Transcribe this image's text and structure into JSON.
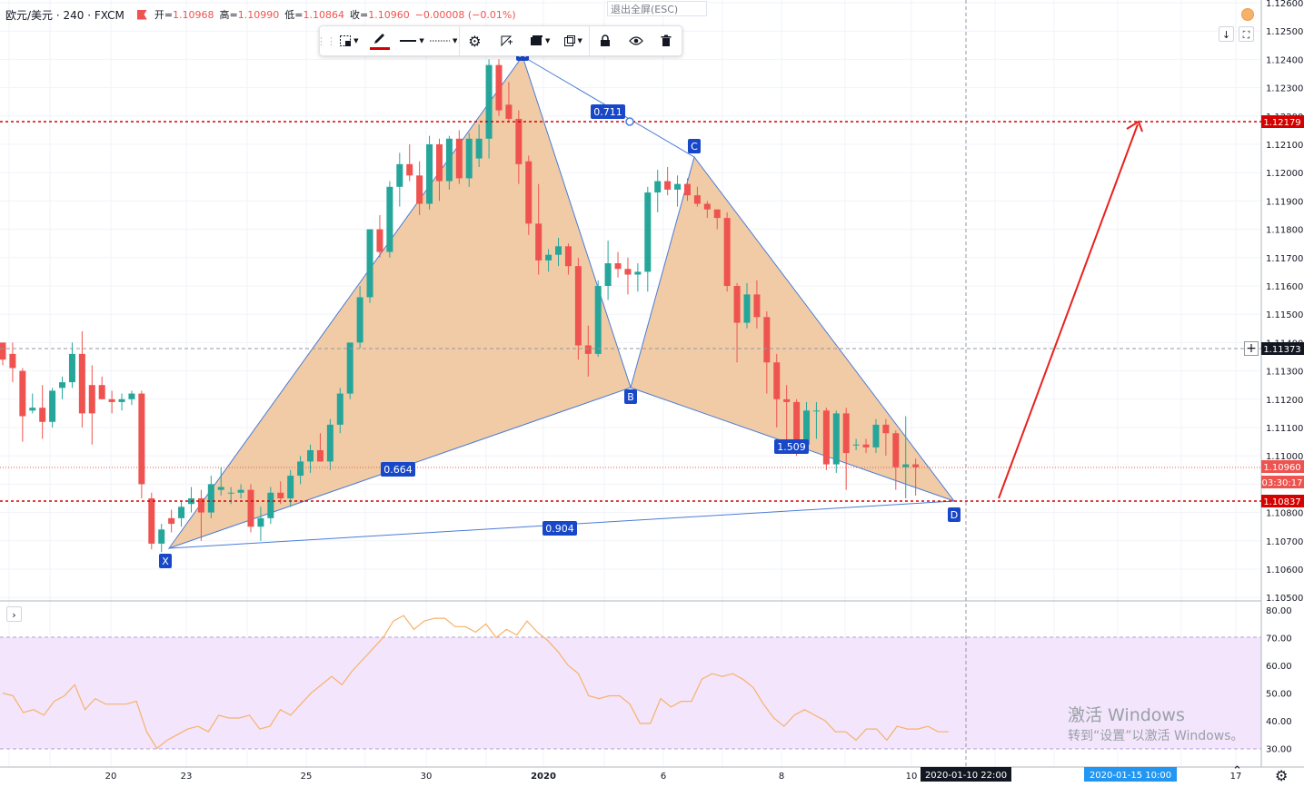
{
  "header": {
    "symbol": "欧元/美元 · 240 · FXCM",
    "open_label": "开=",
    "open": "1.10968",
    "high_label": "高=",
    "high": "1.10990",
    "low_label": "低=",
    "low": "1.10864",
    "close_label": "收=",
    "close": "1.10960",
    "change": "−0.00008 (−0.01%)"
  },
  "exit_fullscreen": "退出全屏(ESC)",
  "toolbar": {
    "items": [
      "select-area-icon",
      "pencil-icon",
      "line-style-icon",
      "line-dash-icon",
      "settings-icon",
      "visual-order-icon",
      "layers-icon",
      "clone-icon",
      "lock-icon",
      "eye-icon",
      "trash-icon"
    ]
  },
  "colors": {
    "up": "#26a69a",
    "down": "#ef5350",
    "pattern_fill": "#f0c8a0",
    "pattern_line": "#4a7cd6",
    "label_bg": "#1848c8",
    "rsi_line": "#f6b26b",
    "rsi_band": "#f3e5fc",
    "level_red": "#d50000",
    "arrow": "#e8211d"
  },
  "price_axis": {
    "ticks": [
      "1.12600",
      "1.12500",
      "1.12400",
      "1.12300",
      "1.12200",
      "1.12100",
      "1.12000",
      "1.11900",
      "1.11800",
      "1.11700",
      "1.11600",
      "1.11500",
      "1.11400",
      "1.11300",
      "1.11200",
      "1.11100",
      "1.11000",
      "1.10900",
      "1.10800",
      "1.10700",
      "1.10600",
      "1.10500"
    ],
    "tag_upper": "1.12179",
    "tag_cross": "1.11373",
    "tag_last": "1.10960",
    "tag_countdown": "03:30:17",
    "tag_lower": "1.10837"
  },
  "rsi_axis": {
    "ticks": [
      "80.00",
      "70.00",
      "60.00",
      "50.00",
      "40.00",
      "30.00"
    ]
  },
  "time_axis": {
    "ticks": [
      "20",
      "23",
      "25",
      "30",
      "2020",
      "6",
      "8",
      "10",
      "17"
    ],
    "cursor_label": "2020-01-10   22:00",
    "end_label": "2020-01-15   10:00"
  },
  "pattern": {
    "points": [
      "X",
      "A",
      "B",
      "C",
      "D"
    ],
    "ratios": [
      "0.664",
      "0.711",
      "1.509",
      "0.904"
    ]
  },
  "watermark": {
    "line1": "激活 Windows",
    "line2": "转到“设置”以激活 Windows。"
  },
  "chart_data": {
    "type": "candlestick",
    "title": "欧元/美元 · 240 · FXCM",
    "ylim": [
      1.105,
      1.126
    ],
    "last_price": 1.1096,
    "horizontal_levels": [
      1.12179,
      1.10837
    ],
    "candles": [
      [
        1.114,
        1.114,
        1.1132,
        1.1134
      ],
      [
        1.1136,
        1.114,
        1.1126,
        1.1131
      ],
      [
        1.113,
        1.1131,
        1.1105,
        1.1114
      ],
      [
        1.1116,
        1.1122,
        1.1115,
        1.1117
      ],
      [
        1.1117,
        1.1125,
        1.1106,
        1.1112
      ],
      [
        1.1112,
        1.1124,
        1.111,
        1.1123
      ],
      [
        1.1124,
        1.1128,
        1.112,
        1.1126
      ],
      [
        1.1126,
        1.114,
        1.1124,
        1.1136
      ],
      [
        1.1136,
        1.1144,
        1.111,
        1.1115
      ],
      [
        1.1125,
        1.1132,
        1.1104,
        1.1115
      ],
      [
        1.1125,
        1.1128,
        1.112,
        1.112
      ],
      [
        1.112,
        1.1123,
        1.1115,
        1.1119
      ],
      [
        1.1119,
        1.1122,
        1.1116,
        1.112
      ],
      [
        1.112,
        1.1123,
        1.1118,
        1.1122
      ],
      [
        1.1122,
        1.1123,
        1.1085,
        1.109
      ],
      [
        1.1085,
        1.1087,
        1.1067,
        1.1069
      ],
      [
        1.1069,
        1.1076,
        1.1066,
        1.1074
      ],
      [
        1.1078,
        1.1081,
        1.1073,
        1.1076
      ],
      [
        1.1078,
        1.1084,
        1.1075,
        1.1082
      ],
      [
        1.1083,
        1.1089,
        1.108,
        1.1085
      ],
      [
        1.1085,
        1.1088,
        1.107,
        1.108
      ],
      [
        1.108,
        1.1093,
        1.1078,
        1.109
      ],
      [
        1.1088,
        1.1096,
        1.1086,
        1.1089
      ],
      [
        1.1087,
        1.1089,
        1.1083,
        1.1087
      ],
      [
        1.1087,
        1.109,
        1.1085,
        1.1088
      ],
      [
        1.1088,
        1.109,
        1.1073,
        1.1075
      ],
      [
        1.1075,
        1.1082,
        1.107,
        1.1078
      ],
      [
        1.1078,
        1.1089,
        1.1076,
        1.1087
      ],
      [
        1.1087,
        1.1091,
        1.1083,
        1.1085
      ],
      [
        1.1085,
        1.1095,
        1.1082,
        1.1093
      ],
      [
        1.1093,
        1.11,
        1.109,
        1.1098
      ],
      [
        1.1098,
        1.1104,
        1.1094,
        1.1102
      ],
      [
        1.1102,
        1.1108,
        1.1098,
        1.1098
      ],
      [
        1.1098,
        1.1113,
        1.1095,
        1.1111
      ],
      [
        1.1111,
        1.1124,
        1.1108,
        1.1122
      ],
      [
        1.1122,
        1.114,
        1.112,
        1.114
      ],
      [
        1.114,
        1.116,
        1.1138,
        1.1156
      ],
      [
        1.1156,
        1.118,
        1.1154,
        1.118
      ],
      [
        1.118,
        1.1185,
        1.117,
        1.1172
      ],
      [
        1.1172,
        1.1197,
        1.117,
        1.1195
      ],
      [
        1.1195,
        1.1207,
        1.1188,
        1.1203
      ],
      [
        1.1203,
        1.121,
        1.1197,
        1.1199
      ],
      [
        1.1199,
        1.1204,
        1.1185,
        1.1189
      ],
      [
        1.1189,
        1.1213,
        1.1187,
        1.121
      ],
      [
        1.121,
        1.1212,
        1.119,
        1.1197
      ],
      [
        1.1197,
        1.1213,
        1.1194,
        1.1212
      ],
      [
        1.1212,
        1.1215,
        1.1196,
        1.1198
      ],
      [
        1.1198,
        1.1214,
        1.1195,
        1.1212
      ],
      [
        1.1205,
        1.1217,
        1.1202,
        1.1212
      ],
      [
        1.1212,
        1.124,
        1.1205,
        1.1238
      ],
      [
        1.1238,
        1.124,
        1.122,
        1.1222
      ],
      [
        1.1224,
        1.1232,
        1.1218,
        1.1219
      ],
      [
        1.1219,
        1.1222,
        1.1196,
        1.1203
      ],
      [
        1.1204,
        1.1206,
        1.1178,
        1.1182
      ],
      [
        1.1182,
        1.1196,
        1.1164,
        1.1169
      ],
      [
        1.1169,
        1.1173,
        1.1165,
        1.1171
      ],
      [
        1.1171,
        1.1177,
        1.1167,
        1.1174
      ],
      [
        1.1174,
        1.1175,
        1.1164,
        1.1167
      ],
      [
        1.1167,
        1.117,
        1.1134,
        1.1139
      ],
      [
        1.1139,
        1.1146,
        1.1128,
        1.1136
      ],
      [
        1.1136,
        1.1162,
        1.1135,
        1.116
      ],
      [
        1.116,
        1.1176,
        1.1155,
        1.1168
      ],
      [
        1.1168,
        1.1172,
        1.1163,
        1.1166
      ],
      [
        1.1166,
        1.117,
        1.1157,
        1.1164
      ],
      [
        1.1164,
        1.1168,
        1.1158,
        1.1165
      ],
      [
        1.1165,
        1.1195,
        1.1158,
        1.1193
      ],
      [
        1.1193,
        1.1201,
        1.1186,
        1.1197
      ],
      [
        1.1197,
        1.1202,
        1.1192,
        1.1194
      ],
      [
        1.1194,
        1.1199,
        1.1188,
        1.1196
      ],
      [
        1.1196,
        1.1198,
        1.119,
        1.1192
      ],
      [
        1.1192,
        1.1195,
        1.1188,
        1.1189
      ],
      [
        1.1189,
        1.119,
        1.1184,
        1.1187
      ],
      [
        1.1187,
        1.1187,
        1.118,
        1.1184
      ],
      [
        1.1184,
        1.1186,
        1.1158,
        1.116
      ],
      [
        1.116,
        1.1161,
        1.1133,
        1.1147
      ],
      [
        1.1147,
        1.1161,
        1.1145,
        1.1157
      ],
      [
        1.1157,
        1.1162,
        1.1145,
        1.1149
      ],
      [
        1.1149,
        1.1151,
        1.1122,
        1.1133
      ],
      [
        1.1133,
        1.1136,
        1.111,
        1.112
      ],
      [
        1.112,
        1.1125,
        1.1105,
        1.1119
      ],
      [
        1.1119,
        1.112,
        1.11,
        1.1104
      ],
      [
        1.1104,
        1.1119,
        1.1102,
        1.1116
      ],
      [
        1.1116,
        1.1119,
        1.1106,
        1.1116
      ],
      [
        1.1116,
        1.1117,
        1.1095,
        1.1097
      ],
      [
        1.1097,
        1.1116,
        1.1094,
        1.1115
      ],
      [
        1.1115,
        1.1117,
        1.1088,
        1.1101
      ],
      [
        1.1104,
        1.1106,
        1.1102,
        1.1104
      ],
      [
        1.1104,
        1.1106,
        1.1101,
        1.1103
      ],
      [
        1.1103,
        1.1113,
        1.1101,
        1.1111
      ],
      [
        1.1111,
        1.1113,
        1.11,
        1.1108
      ],
      [
        1.1108,
        1.1109,
        1.1088,
        1.1096
      ],
      [
        1.1096,
        1.1114,
        1.1085,
        1.1097
      ],
      [
        1.1097,
        1.1099,
        1.1086,
        1.1096
      ]
    ],
    "rsi": [
      50,
      49,
      43,
      44,
      42,
      47,
      49,
      53,
      44,
      48,
      46,
      46,
      46,
      47,
      36,
      30,
      33,
      35,
      37,
      38,
      36,
      42,
      41,
      41,
      42,
      37,
      38,
      44,
      42,
      46,
      50,
      53,
      56,
      53,
      58,
      62,
      66,
      70,
      76,
      78,
      73,
      76,
      77,
      77,
      74,
      74,
      72,
      75,
      70,
      73,
      71,
      76,
      72,
      69,
      65,
      60,
      57,
      49,
      48,
      49,
      49,
      46,
      39,
      39,
      48,
      45,
      47,
      47,
      55,
      57,
      56,
      57,
      55,
      52,
      46,
      41,
      38,
      42,
      44,
      42,
      40,
      36,
      36,
      33,
      37,
      37,
      33,
      38,
      37,
      37,
      38,
      36,
      36
    ]
  }
}
